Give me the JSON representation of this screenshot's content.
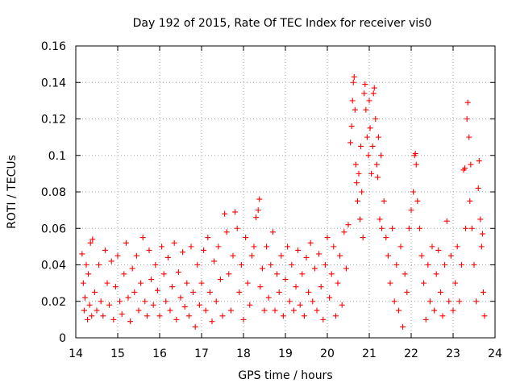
{
  "chart_data": {
    "type": "scatter",
    "title": "Day 192 of 2015, Rate Of TEC Index for receiver vis0",
    "xlabel": "GPS time / hours",
    "ylabel": "ROTI / TECUs",
    "xlim": [
      14,
      24
    ],
    "ylim": [
      0,
      0.16
    ],
    "xticks": [
      14,
      15,
      16,
      17,
      18,
      19,
      20,
      21,
      22,
      23,
      24
    ],
    "xtick_labels": [
      "14",
      "15",
      "16",
      "17",
      "18",
      "19",
      "20",
      "21",
      "22",
      "23",
      "24"
    ],
    "yticks": [
      0,
      0.02,
      0.04,
      0.06,
      0.08,
      0.1,
      0.12,
      0.14,
      0.16
    ],
    "ytick_labels": [
      "0",
      "0.02",
      "0.04",
      "0.06",
      "0.08",
      "0.1",
      "0.12",
      "0.14",
      "0.16"
    ],
    "grid": true,
    "marker": "+",
    "marker_color": "#ff0000",
    "series": [
      {
        "name": "ROTI",
        "points": [
          [
            14.15,
            0.046
          ],
          [
            14.18,
            0.03
          ],
          [
            14.2,
            0.015
          ],
          [
            14.22,
            0.022
          ],
          [
            14.25,
            0.04
          ],
          [
            14.28,
            0.01
          ],
          [
            14.3,
            0.035
          ],
          [
            14.33,
            0.018
          ],
          [
            14.35,
            0.052
          ],
          [
            14.38,
            0.012
          ],
          [
            14.4,
            0.054
          ],
          [
            14.45,
            0.025
          ],
          [
            14.5,
            0.015
          ],
          [
            14.55,
            0.04
          ],
          [
            14.6,
            0.02
          ],
          [
            14.65,
            0.012
          ],
          [
            14.7,
            0.048
          ],
          [
            14.75,
            0.03
          ],
          [
            14.8,
            0.018
          ],
          [
            14.85,
            0.042
          ],
          [
            14.9,
            0.01
          ],
          [
            14.95,
            0.028
          ],
          [
            15.0,
            0.045
          ],
          [
            15.05,
            0.02
          ],
          [
            15.1,
            0.013
          ],
          [
            15.15,
            0.035
          ],
          [
            15.2,
            0.052
          ],
          [
            15.25,
            0.022
          ],
          [
            15.3,
            0.009
          ],
          [
            15.35,
            0.038
          ],
          [
            15.4,
            0.025
          ],
          [
            15.45,
            0.045
          ],
          [
            15.5,
            0.015
          ],
          [
            15.55,
            0.03
          ],
          [
            15.6,
            0.055
          ],
          [
            15.65,
            0.02
          ],
          [
            15.7,
            0.012
          ],
          [
            15.75,
            0.048
          ],
          [
            15.8,
            0.032
          ],
          [
            15.85,
            0.018
          ],
          [
            15.9,
            0.04
          ],
          [
            15.95,
            0.026
          ],
          [
            16.0,
            0.012
          ],
          [
            16.05,
            0.05
          ],
          [
            16.1,
            0.035
          ],
          [
            16.15,
            0.02
          ],
          [
            16.2,
            0.044
          ],
          [
            16.25,
            0.015
          ],
          [
            16.3,
            0.028
          ],
          [
            16.35,
            0.052
          ],
          [
            16.4,
            0.01
          ],
          [
            16.45,
            0.036
          ],
          [
            16.5,
            0.022
          ],
          [
            16.55,
            0.047
          ],
          [
            16.6,
            0.017
          ],
          [
            16.65,
            0.03
          ],
          [
            16.7,
            0.012
          ],
          [
            16.75,
            0.05
          ],
          [
            16.8,
            0.025
          ],
          [
            16.85,
            0.006
          ],
          [
            16.9,
            0.04
          ],
          [
            16.95,
            0.018
          ],
          [
            17.0,
            0.03
          ],
          [
            17.05,
            0.048
          ],
          [
            17.1,
            0.015
          ],
          [
            17.15,
            0.055
          ],
          [
            17.2,
            0.025
          ],
          [
            17.25,
            0.009
          ],
          [
            17.3,
            0.042
          ],
          [
            17.35,
            0.02
          ],
          [
            17.4,
            0.05
          ],
          [
            17.45,
            0.032
          ],
          [
            17.5,
            0.012
          ],
          [
            17.55,
            0.068
          ],
          [
            17.6,
            0.058
          ],
          [
            17.65,
            0.035
          ],
          [
            17.7,
            0.015
          ],
          [
            17.75,
            0.045
          ],
          [
            17.8,
            0.069
          ],
          [
            17.85,
            0.06
          ],
          [
            17.9,
            0.025
          ],
          [
            17.95,
            0.04
          ],
          [
            18.0,
            0.01
          ],
          [
            18.05,
            0.055
          ],
          [
            18.1,
            0.03
          ],
          [
            18.15,
            0.018
          ],
          [
            18.2,
            0.045
          ],
          [
            18.25,
            0.05
          ],
          [
            18.3,
            0.066
          ],
          [
            18.35,
            0.07
          ],
          [
            18.38,
            0.076
          ],
          [
            18.4,
            0.028
          ],
          [
            18.45,
            0.038
          ],
          [
            18.5,
            0.015
          ],
          [
            18.55,
            0.05
          ],
          [
            18.6,
            0.022
          ],
          [
            18.65,
            0.04
          ],
          [
            18.7,
            0.058
          ],
          [
            18.75,
            0.015
          ],
          [
            18.8,
            0.035
          ],
          [
            18.85,
            0.025
          ],
          [
            18.9,
            0.045
          ],
          [
            18.95,
            0.012
          ],
          [
            19.0,
            0.032
          ],
          [
            19.05,
            0.05
          ],
          [
            19.1,
            0.02
          ],
          [
            19.15,
            0.04
          ],
          [
            19.2,
            0.015
          ],
          [
            19.25,
            0.028
          ],
          [
            19.3,
            0.048
          ],
          [
            19.35,
            0.018
          ],
          [
            19.4,
            0.035
          ],
          [
            19.45,
            0.012
          ],
          [
            19.5,
            0.044
          ],
          [
            19.55,
            0.025
          ],
          [
            19.6,
            0.052
          ],
          [
            19.65,
            0.02
          ],
          [
            19.7,
            0.038
          ],
          [
            19.75,
            0.015
          ],
          [
            19.8,
            0.046
          ],
          [
            19.85,
            0.028
          ],
          [
            19.9,
            0.01
          ],
          [
            19.95,
            0.04
          ],
          [
            20.0,
            0.055
          ],
          [
            20.05,
            0.022
          ],
          [
            20.1,
            0.035
          ],
          [
            20.15,
            0.05
          ],
          [
            20.2,
            0.012
          ],
          [
            20.25,
            0.03
          ],
          [
            20.3,
            0.045
          ],
          [
            20.35,
            0.018
          ],
          [
            20.4,
            0.058
          ],
          [
            20.45,
            0.038
          ],
          [
            20.5,
            0.062
          ],
          [
            20.55,
            0.107
          ],
          [
            20.58,
            0.116
          ],
          [
            20.6,
            0.13
          ],
          [
            20.62,
            0.14
          ],
          [
            20.64,
            0.143
          ],
          [
            20.66,
            0.125
          ],
          [
            20.68,
            0.095
          ],
          [
            20.7,
            0.085
          ],
          [
            20.72,
            0.075
          ],
          [
            20.75,
            0.09
          ],
          [
            20.78,
            0.065
          ],
          [
            20.8,
            0.105
          ],
          [
            20.82,
            0.08
          ],
          [
            20.85,
            0.055
          ],
          [
            20.88,
            0.134
          ],
          [
            20.9,
            0.139
          ],
          [
            20.92,
            0.125
          ],
          [
            20.95,
            0.11
          ],
          [
            20.98,
            0.1
          ],
          [
            21.0,
            0.13
          ],
          [
            21.02,
            0.115
          ],
          [
            21.05,
            0.09
          ],
          [
            21.08,
            0.105
          ],
          [
            21.1,
            0.134
          ],
          [
            21.12,
            0.137
          ],
          [
            21.15,
            0.12
          ],
          [
            21.18,
            0.095
          ],
          [
            21.2,
            0.088
          ],
          [
            21.22,
            0.11
          ],
          [
            21.25,
            0.065
          ],
          [
            21.28,
            0.1
          ],
          [
            21.3,
            0.06
          ],
          [
            21.35,
            0.075
          ],
          [
            21.4,
            0.055
          ],
          [
            21.45,
            0.045
          ],
          [
            21.5,
            0.03
          ],
          [
            21.55,
            0.06
          ],
          [
            21.6,
            0.02
          ],
          [
            21.65,
            0.04
          ],
          [
            21.7,
            0.015
          ],
          [
            21.75,
            0.05
          ],
          [
            21.8,
            0.006
          ],
          [
            21.85,
            0.035
          ],
          [
            21.9,
            0.025
          ],
          [
            21.95,
            0.06
          ],
          [
            22.0,
            0.07
          ],
          [
            22.05,
            0.08
          ],
          [
            22.08,
            0.1
          ],
          [
            22.1,
            0.101
          ],
          [
            22.12,
            0.095
          ],
          [
            22.15,
            0.075
          ],
          [
            22.2,
            0.06
          ],
          [
            22.25,
            0.045
          ],
          [
            22.3,
            0.03
          ],
          [
            22.35,
            0.01
          ],
          [
            22.4,
            0.04
          ],
          [
            22.45,
            0.02
          ],
          [
            22.5,
            0.05
          ],
          [
            22.55,
            0.015
          ],
          [
            22.6,
            0.035
          ],
          [
            22.65,
            0.048
          ],
          [
            22.7,
            0.025
          ],
          [
            22.75,
            0.012
          ],
          [
            22.8,
            0.04
          ],
          [
            22.85,
            0.064
          ],
          [
            22.9,
            0.02
          ],
          [
            22.95,
            0.045
          ],
          [
            23.0,
            0.015
          ],
          [
            23.05,
            0.03
          ],
          [
            23.1,
            0.05
          ],
          [
            23.15,
            0.02
          ],
          [
            23.2,
            0.04
          ],
          [
            23.25,
            0.092
          ],
          [
            23.28,
            0.093
          ],
          [
            23.3,
            0.06
          ],
          [
            23.33,
            0.12
          ],
          [
            23.35,
            0.129
          ],
          [
            23.38,
            0.11
          ],
          [
            23.4,
            0.075
          ],
          [
            23.42,
            0.095
          ],
          [
            23.45,
            0.06
          ],
          [
            23.5,
            0.04
          ],
          [
            23.55,
            0.02
          ],
          [
            23.6,
            0.082
          ],
          [
            23.62,
            0.097
          ],
          [
            23.65,
            0.065
          ],
          [
            23.68,
            0.05
          ],
          [
            23.7,
            0.057
          ],
          [
            23.72,
            0.025
          ],
          [
            23.75,
            0.012
          ]
        ]
      }
    ]
  }
}
